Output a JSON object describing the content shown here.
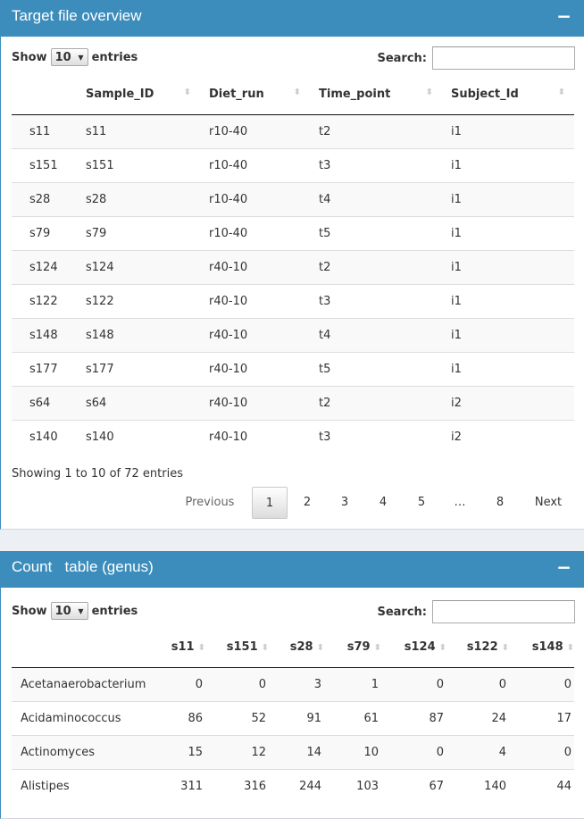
{
  "panel1": {
    "title": "Target file overview",
    "collapse": "−",
    "length": {
      "show": "Show",
      "value": "10",
      "entries": "entries"
    },
    "search_label": "Search:",
    "search_value": "",
    "columns": [
      "",
      "Sample_ID",
      "Diet_run",
      "Time_point",
      "Subject_Id"
    ],
    "rows": [
      [
        "s11",
        "s11",
        "r10-40",
        "t2",
        "i1"
      ],
      [
        "s151",
        "s151",
        "r10-40",
        "t3",
        "i1"
      ],
      [
        "s28",
        "s28",
        "r10-40",
        "t4",
        "i1"
      ],
      [
        "s79",
        "s79",
        "r10-40",
        "t5",
        "i1"
      ],
      [
        "s124",
        "s124",
        "r40-10",
        "t2",
        "i1"
      ],
      [
        "s122",
        "s122",
        "r40-10",
        "t3",
        "i1"
      ],
      [
        "s148",
        "s148",
        "r40-10",
        "t4",
        "i1"
      ],
      [
        "s177",
        "s177",
        "r40-10",
        "t5",
        "i1"
      ],
      [
        "s64",
        "s64",
        "r40-10",
        "t2",
        "i2"
      ],
      [
        "s140",
        "s140",
        "r40-10",
        "t3",
        "i2"
      ]
    ],
    "info": "Showing 1 to 10 of 72 entries",
    "pager": {
      "previous": "Previous",
      "pages": [
        "1",
        "2",
        "3",
        "4",
        "5",
        "…",
        "8"
      ],
      "next": "Next",
      "current": "1"
    }
  },
  "panel2": {
    "title": "Count   table (genus)",
    "collapse": "−",
    "length": {
      "show": "Show",
      "value": "10",
      "entries": "entries"
    },
    "search_label": "Search:",
    "search_value": "",
    "columns": [
      "",
      "s11",
      "s151",
      "s28",
      "s79",
      "s124",
      "s122",
      "s148"
    ],
    "rows": [
      [
        "Acetanaerobacterium",
        "0",
        "0",
        "3",
        "1",
        "0",
        "0",
        "0"
      ],
      [
        "Acidaminococcus",
        "86",
        "52",
        "91",
        "61",
        "87",
        "24",
        "17"
      ],
      [
        "Actinomyces",
        "15",
        "12",
        "14",
        "10",
        "0",
        "4",
        "0"
      ],
      [
        "Alistipes",
        "311",
        "316",
        "244",
        "103",
        "67",
        "140",
        "44"
      ]
    ]
  },
  "colors": {
    "header": "#3c8dbc",
    "background": "#ecf0f5"
  }
}
